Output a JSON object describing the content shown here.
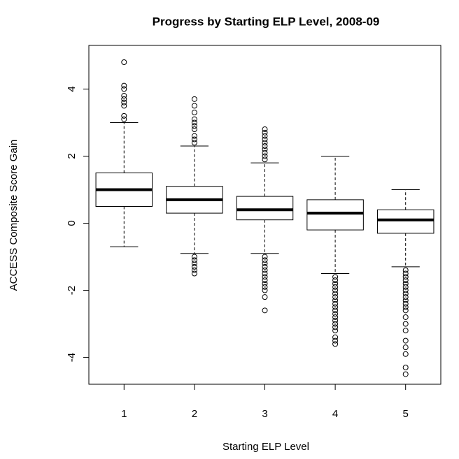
{
  "chart_data": {
    "type": "box",
    "title": "Progress by Starting ELP Level, 2008-09",
    "x_label": "Starting ELP Level",
    "y_label": "ACCESS Composite Score Gain",
    "categories": [
      "1",
      "2",
      "3",
      "4",
      "5"
    ],
    "boxes": [
      {
        "min": -0.7,
        "q1": 0.5,
        "median": 1.0,
        "q3": 1.5,
        "max": 3.0,
        "outliers": [
          3.1,
          3.2,
          3.5,
          3.6,
          3.7,
          3.8,
          4.0,
          4.1,
          4.8
        ]
      },
      {
        "min": -0.9,
        "q1": 0.3,
        "median": 0.7,
        "q3": 1.1,
        "max": 2.3,
        "outliers": [
          2.4,
          2.5,
          2.6,
          2.8,
          2.9,
          3.0,
          3.1,
          3.3,
          3.5,
          3.7,
          -1.0,
          -1.1,
          -1.2,
          -1.3,
          -1.4,
          -1.5
        ]
      },
      {
        "min": -0.9,
        "q1": 0.1,
        "median": 0.4,
        "q3": 0.8,
        "max": 1.8,
        "outliers": [
          1.9,
          2.0,
          2.1,
          2.2,
          2.3,
          2.4,
          2.5,
          2.6,
          2.7,
          2.8,
          -1.0,
          -1.1,
          -1.2,
          -1.3,
          -1.4,
          -1.5,
          -1.6,
          -1.7,
          -1.8,
          -1.9,
          -2.0,
          -2.2,
          -2.6
        ]
      },
      {
        "min": -1.5,
        "q1": -0.2,
        "median": 0.3,
        "q3": 0.7,
        "max": 2.0,
        "outliers": [
          -1.6,
          -1.7,
          -1.8,
          -1.9,
          -2.0,
          -2.1,
          -2.2,
          -2.3,
          -2.4,
          -2.5,
          -2.6,
          -2.7,
          -2.8,
          -2.9,
          -3.0,
          -3.1,
          -3.2,
          -3.4,
          -3.5,
          -3.6
        ]
      },
      {
        "min": -1.3,
        "q1": -0.3,
        "median": 0.1,
        "q3": 0.4,
        "max": 1.0,
        "outliers": [
          -1.4,
          -1.5,
          -1.6,
          -1.7,
          -1.8,
          -1.9,
          -2.0,
          -2.1,
          -2.2,
          -2.3,
          -2.4,
          -2.5,
          -2.6,
          -2.8,
          -3.0,
          -3.2,
          -3.5,
          -3.7,
          -3.9,
          -4.3,
          -4.5
        ]
      }
    ],
    "xlim": [
      0.5,
      5.5
    ],
    "ylim": [
      -4.8,
      5.3
    ],
    "yticks": [
      -4,
      -2,
      0,
      2,
      4
    ]
  }
}
